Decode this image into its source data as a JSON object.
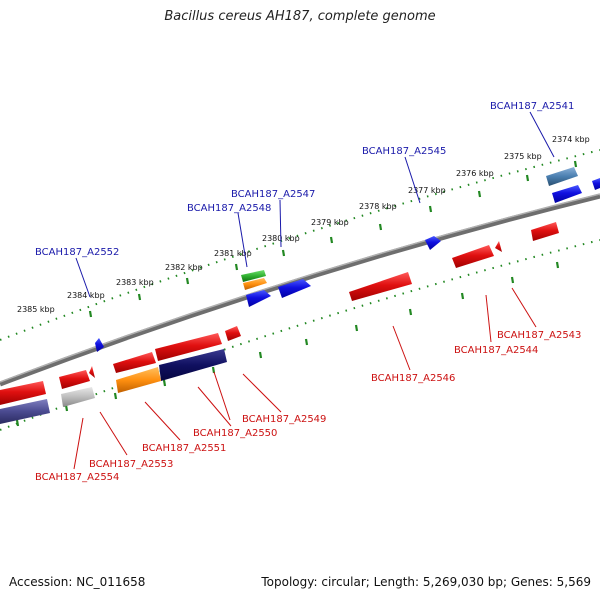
{
  "title": "Bacillus cereus AH187, complete genome",
  "footer": {
    "accession": "Accession: NC_011658",
    "topology": "Topology: circular; Length: 5,269,030 bp; Genes: 5,569"
  },
  "ticks": [
    "2385 kbp",
    "2384 kbp",
    "2383 kbp",
    "2382 kbp",
    "2381 kbp",
    "2380 kbp",
    "2379 kbp",
    "2378 kbp",
    "2377 kbp",
    "2376 kbp",
    "2375 kbp",
    "2374 kbp"
  ],
  "forward_genes": [
    "BCAH187_A2541",
    "BCAH187_A2545",
    "BCAH187_A2547",
    "BCAH187_A2548",
    "BCAH187_A2552"
  ],
  "reverse_genes": [
    "BCAH187_A2543",
    "BCAH187_A2544",
    "BCAH187_A2546",
    "BCAH187_A2549",
    "BCAH187_A2550",
    "BCAH187_A2551",
    "BCAH187_A2553",
    "BCAH187_A2554"
  ],
  "colors": {
    "axis": "#8a8a8a",
    "tick": "#228822",
    "forward_label": "#1a1aaa",
    "reverse_label": "#cc1111",
    "red": "#e02020",
    "blue": "#1a1ae0",
    "navy": "#202070",
    "orange": "#ff9a10",
    "green": "#33bb33",
    "steel": "#4a7fb0",
    "gray": "#bdbdbd",
    "purple": "#4a4a90"
  }
}
